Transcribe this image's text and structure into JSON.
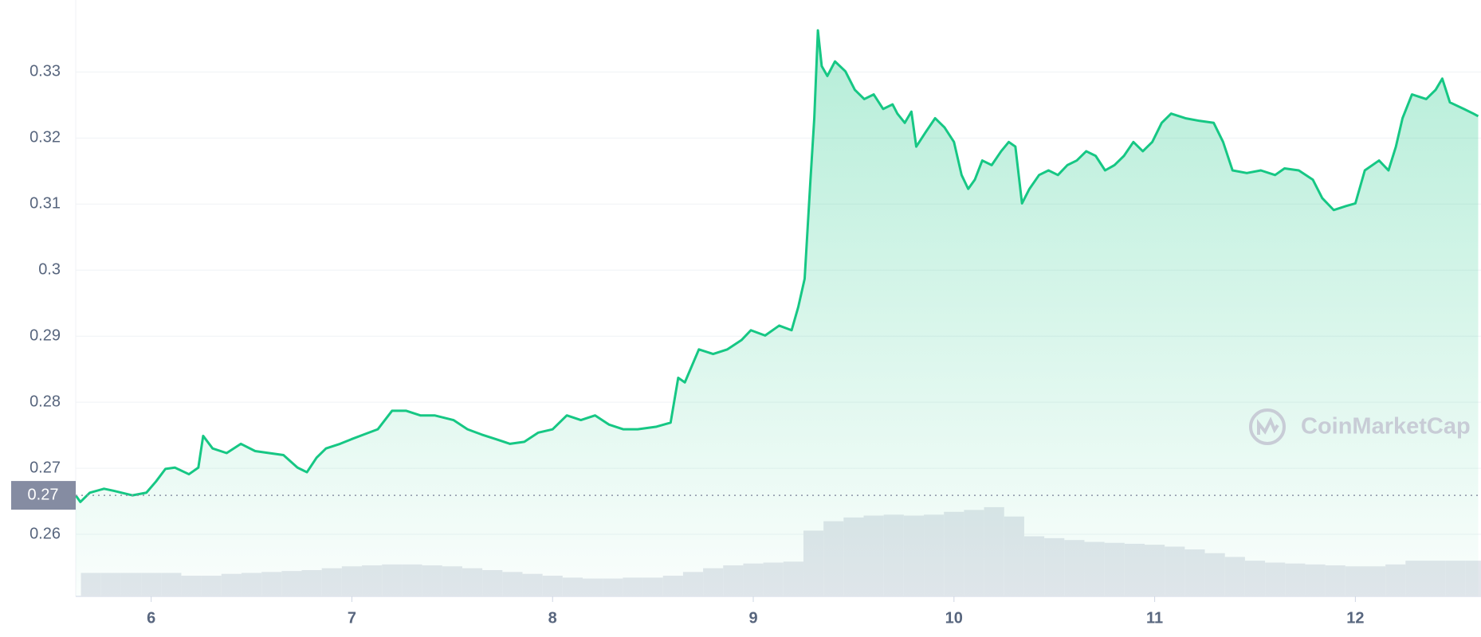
{
  "chart_data": {
    "type": "line",
    "series": [
      {
        "color": "#16c784",
        "x": [
          5.624,
          5.647,
          5.694,
          5.765,
          5.812,
          5.906,
          5.976,
          6.024,
          6.071,
          6.118,
          6.188,
          6.235,
          6.259,
          6.306,
          6.376,
          6.447,
          6.518,
          6.588,
          6.659,
          6.729,
          6.776,
          6.824,
          6.871,
          6.941,
          6.998,
          7.059,
          7.129,
          7.2,
          7.271,
          7.341,
          7.412,
          7.506,
          7.576,
          7.647,
          7.718,
          7.788,
          7.859,
          7.929,
          8.0,
          8.071,
          8.141,
          8.212,
          8.282,
          8.353,
          8.424,
          8.518,
          8.588,
          8.626,
          8.659,
          8.729,
          8.8,
          8.871,
          8.941,
          8.988,
          9.059,
          9.129,
          9.191,
          9.224,
          9.256,
          9.285,
          9.304,
          9.322,
          9.341,
          9.369,
          9.407,
          9.459,
          9.506,
          9.553,
          9.6,
          9.647,
          9.694,
          9.718,
          9.755,
          9.788,
          9.812,
          9.859,
          9.906,
          9.953,
          10.0,
          10.038,
          10.071,
          10.104,
          10.141,
          10.188,
          10.235,
          10.273,
          10.306,
          10.339,
          10.376,
          10.424,
          10.471,
          10.518,
          10.565,
          10.612,
          10.659,
          10.706,
          10.753,
          10.8,
          10.847,
          10.894,
          10.941,
          10.988,
          11.035,
          11.082,
          11.153,
          11.224,
          11.294,
          11.341,
          11.388,
          11.459,
          11.529,
          11.6,
          11.647,
          11.718,
          11.788,
          11.835,
          11.892,
          11.953,
          12.0,
          12.047,
          12.118,
          12.165,
          12.202,
          12.235,
          12.282,
          12.353,
          12.4,
          12.433,
          12.471,
          12.541,
          12.588,
          12.612
        ],
        "values": [
          0.2659,
          0.2649,
          0.2663,
          0.2669,
          0.2666,
          0.2659,
          0.2663,
          0.268,
          0.2699,
          0.2701,
          0.2691,
          0.2701,
          0.2749,
          0.273,
          0.2723,
          0.2737,
          0.2726,
          0.2723,
          0.272,
          0.2701,
          0.2694,
          0.2716,
          0.273,
          0.2737,
          0.2744,
          0.2751,
          0.2759,
          0.2787,
          0.2787,
          0.278,
          0.278,
          0.2773,
          0.2759,
          0.2751,
          0.2744,
          0.2737,
          0.274,
          0.2754,
          0.2759,
          0.278,
          0.2773,
          0.278,
          0.2766,
          0.2759,
          0.2759,
          0.2763,
          0.2769,
          0.2837,
          0.283,
          0.288,
          0.2873,
          0.288,
          0.2894,
          0.2909,
          0.2901,
          0.2916,
          0.2909,
          0.2944,
          0.2987,
          0.3137,
          0.323,
          0.3363,
          0.3309,
          0.3294,
          0.3316,
          0.3301,
          0.3273,
          0.3259,
          0.3266,
          0.3244,
          0.3251,
          0.3237,
          0.3223,
          0.324,
          0.3187,
          0.3209,
          0.323,
          0.3216,
          0.3194,
          0.3144,
          0.3123,
          0.3137,
          0.3166,
          0.3159,
          0.318,
          0.3194,
          0.3187,
          0.3101,
          0.3123,
          0.3144,
          0.3151,
          0.3144,
          0.3159,
          0.3166,
          0.318,
          0.3173,
          0.3151,
          0.3159,
          0.3173,
          0.3194,
          0.318,
          0.3194,
          0.3223,
          0.3237,
          0.323,
          0.3226,
          0.3223,
          0.3194,
          0.3151,
          0.3147,
          0.3151,
          0.3144,
          0.3154,
          0.3151,
          0.3137,
          0.3109,
          0.3091,
          0.3097,
          0.3101,
          0.3151,
          0.3166,
          0.3151,
          0.3187,
          0.323,
          0.3266,
          0.3259,
          0.3273,
          0.329,
          0.3254,
          0.3244,
          0.3237,
          0.3233
        ]
      }
    ],
    "xlim": [
      5.624,
      12.626
    ],
    "xticks": [
      6,
      7,
      8,
      9,
      10,
      11,
      12
    ],
    "ylim": [
      0.2506,
      0.3409
    ],
    "yticks": [
      0.26,
      0.27,
      0.28,
      0.29,
      0.3,
      0.31,
      0.32,
      0.33
    ],
    "grid": true,
    "reference_line": {
      "value": 0.2659,
      "label": "0.27"
    },
    "volume": {
      "color": "#e3e6ec",
      "vlim": [
        0,
        100
      ],
      "x": [
        5.7,
        5.8,
        5.9,
        6.0,
        6.1,
        6.2,
        6.3,
        6.4,
        6.5,
        6.6,
        6.7,
        6.8,
        6.9,
        7.0,
        7.1,
        7.2,
        7.3,
        7.4,
        7.5,
        7.6,
        7.7,
        7.8,
        7.9,
        8.0,
        8.1,
        8.2,
        8.3,
        8.4,
        8.5,
        8.6,
        8.7,
        8.8,
        8.9,
        9.0,
        9.1,
        9.2,
        9.3,
        9.4,
        9.5,
        9.6,
        9.7,
        9.8,
        9.9,
        10.0,
        10.1,
        10.2,
        10.3,
        10.4,
        10.5,
        10.6,
        10.7,
        10.8,
        10.9,
        11.0,
        11.1,
        11.2,
        11.3,
        11.4,
        11.5,
        11.6,
        11.7,
        11.8,
        11.9,
        12.0,
        12.1,
        12.2,
        12.3,
        12.4,
        12.5,
        12.6
      ],
      "values": [
        25,
        25,
        25,
        25,
        25,
        22,
        22,
        24,
        25,
        26,
        27,
        28,
        30,
        32,
        33,
        34,
        34,
        33,
        32,
        30,
        28,
        26,
        24,
        22,
        20,
        19,
        19,
        20,
        20,
        22,
        26,
        30,
        33,
        35,
        36,
        37,
        70,
        80,
        84,
        86,
        87,
        86,
        87,
        90,
        92,
        95,
        85,
        64,
        62,
        60,
        58,
        57,
        56,
        55,
        53,
        50,
        46,
        42,
        38,
        36,
        35,
        34,
        33,
        32,
        32,
        34,
        38,
        38,
        38,
        38
      ]
    },
    "watermark": "CoinMarketCap"
  }
}
